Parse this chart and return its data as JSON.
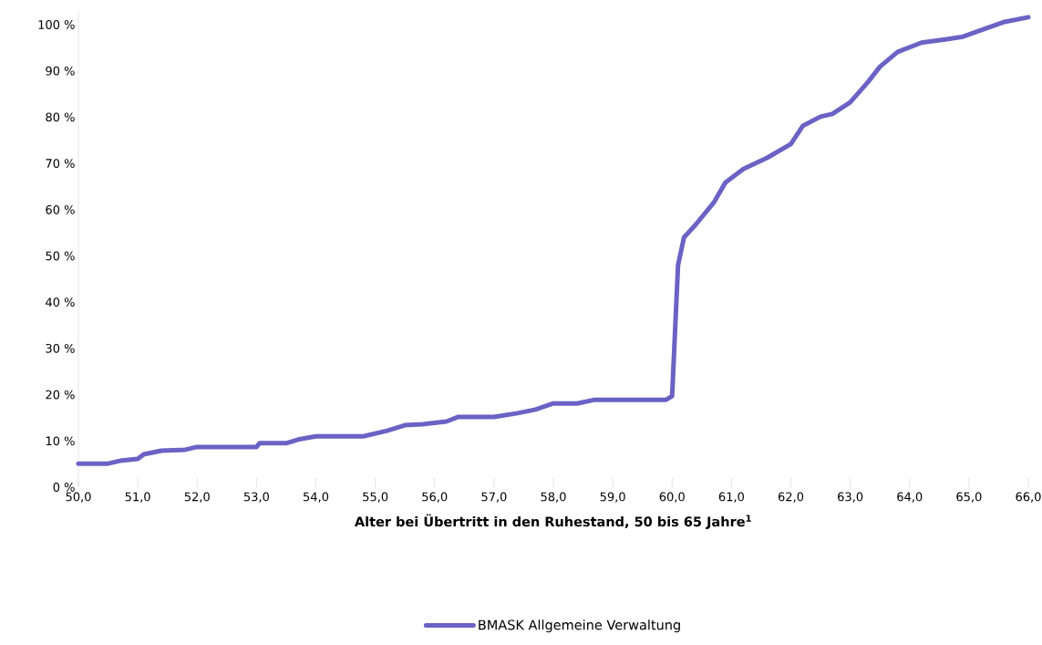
{
  "chart_data": {
    "type": "line",
    "xlabel": "Alter bei Übertritt in den Ruhestand, 50 bis 65 Jahre$^{1}$",
    "x": [
      50.0,
      50.5,
      50.7,
      51.0,
      51.1,
      51.4,
      51.8,
      52.0,
      53.0,
      53.05,
      53.5,
      53.7,
      54.0,
      54.8,
      55.0,
      55.2,
      55.5,
      55.8,
      56.2,
      56.4,
      57.0,
      57.4,
      57.7,
      58.0,
      58.4,
      58.7,
      59.9,
      60.0,
      60.1,
      60.2,
      60.4,
      60.7,
      60.9,
      61.2,
      61.6,
      62.0,
      62.2,
      62.5,
      62.7,
      63.0,
      63.3,
      63.5,
      63.8,
      64.2,
      64.6,
      64.9,
      65.2,
      65.6,
      66.0
    ],
    "series": [
      {
        "name": "BMASK Allgemeine Verwaltung",
        "color": "#6a62c4",
        "values": [
          5.1,
          5.1,
          5.7,
          6.1,
          7.1,
          7.9,
          8.1,
          8.7,
          8.7,
          9.5,
          9.5,
          10.3,
          11.0,
          11.0,
          11.6,
          12.2,
          13.4,
          13.6,
          14.2,
          15.2,
          15.2,
          16.0,
          16.8,
          18.1,
          18.1,
          18.9,
          18.9,
          19.7,
          48,
          54,
          56.8,
          61.5,
          65.9,
          68.8,
          71.2,
          74.2,
          78.1,
          80.1,
          80.7,
          83.2,
          87.6,
          90.9,
          94.1,
          96.1,
          96.8,
          97.4,
          98.8,
          100.6,
          101.6
        ]
      }
    ],
    "xlim": [
      50,
      66
    ],
    "xticks": [
      {
        "value": 50,
        "label": "50,0"
      },
      {
        "value": 51,
        "label": "51,0"
      },
      {
        "value": 52,
        "label": "52,0"
      },
      {
        "value": 53,
        "label": "53,0"
      },
      {
        "value": 54,
        "label": "54,0"
      },
      {
        "value": 55,
        "label": "55,0"
      },
      {
        "value": 56,
        "label": "56,0"
      },
      {
        "value": 57,
        "label": "57,0"
      },
      {
        "value": 58,
        "label": "58,0"
      },
      {
        "value": 59,
        "label": "59,0"
      },
      {
        "value": 60,
        "label": "60,0"
      },
      {
        "value": 61,
        "label": "61,0"
      },
      {
        "value": 62,
        "label": "62,0"
      },
      {
        "value": 63,
        "label": "63,0"
      },
      {
        "value": 64,
        "label": "64,0"
      },
      {
        "value": 65,
        "label": "65,0"
      },
      {
        "value": 66,
        "label": "66,0"
      }
    ],
    "ylim": [
      0,
      103
    ],
    "yticks": [
      {
        "value": 0,
        "label": "0 %"
      },
      {
        "value": 10,
        "label": "10 %"
      },
      {
        "value": 20,
        "label": "20 %"
      },
      {
        "value": 30,
        "label": "30 %"
      },
      {
        "value": 40,
        "label": "40 %"
      },
      {
        "value": 50,
        "label": "50 %"
      },
      {
        "value": 60,
        "label": "60 %"
      },
      {
        "value": 70,
        "label": "70 %"
      },
      {
        "value": 80,
        "label": "80 %"
      },
      {
        "value": 90,
        "label": "90 %"
      },
      {
        "value": 100,
        "label": "100 %"
      }
    ],
    "legend": "bottom",
    "marker": "none",
    "line_style": "solid"
  }
}
